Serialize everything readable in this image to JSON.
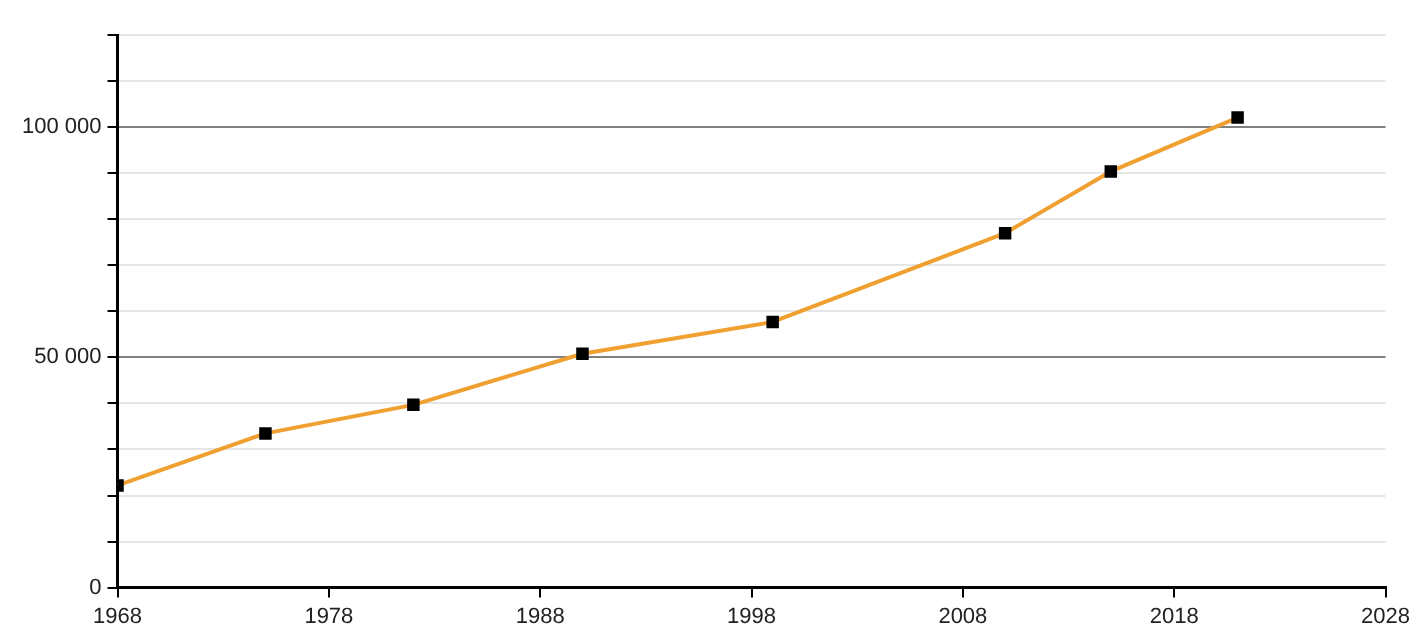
{
  "chart_data": {
    "type": "line",
    "x": [
      1968,
      1975,
      1982,
      1990,
      1999,
      2010,
      2015,
      2021
    ],
    "series": [
      {
        "color": "#f0a030",
        "values": [
          22200,
          33500,
          39700,
          50800,
          57700,
          77000,
          90400,
          102100
        ]
      }
    ],
    "xlim": [
      1968,
      2028
    ],
    "xticks": [
      1968,
      1978,
      1988,
      1998,
      2008,
      2018,
      2028
    ],
    "ylim": [
      0,
      120000
    ],
    "yticks": [
      {
        "value": 0,
        "label": "0"
      },
      {
        "value": 10000,
        "label": null
      },
      {
        "value": 20000,
        "label": null
      },
      {
        "value": 30000,
        "label": null
      },
      {
        "value": 40000,
        "label": null
      },
      {
        "value": 50000,
        "label": "50 000"
      },
      {
        "value": 60000,
        "label": null
      },
      {
        "value": 70000,
        "label": null
      },
      {
        "value": 80000,
        "label": null
      },
      {
        "value": 90000,
        "label": null
      },
      {
        "value": 100000,
        "label": "100 000"
      },
      {
        "value": 110000,
        "label": null
      },
      {
        "value": 120000,
        "label": null
      }
    ],
    "grid": "y",
    "marker": "square",
    "line_style": "solid",
    "legend": false
  }
}
